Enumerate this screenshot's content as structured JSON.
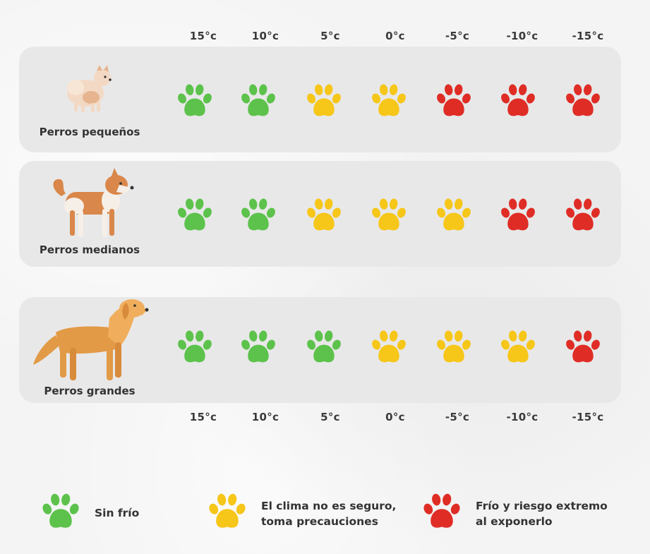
{
  "temperatures": [
    "15°c",
    "10°c",
    "5°c",
    "0°c",
    "-5°c",
    "-10°c",
    "-15°c"
  ],
  "colors": {
    "green": "#5cc24b",
    "yellow": "#f6c619",
    "red": "#df2d26"
  },
  "rows": [
    {
      "label": "Perros pequeños",
      "dog": "small-dog",
      "levels": [
        "green",
        "green",
        "yellow",
        "yellow",
        "red",
        "red",
        "red"
      ]
    },
    {
      "label": "Perros medianos",
      "dog": "medium-dog",
      "levels": [
        "green",
        "green",
        "yellow",
        "yellow",
        "yellow",
        "red",
        "red"
      ]
    },
    {
      "label": "Perros grandes",
      "dog": "large-dog",
      "levels": [
        "green",
        "green",
        "green",
        "yellow",
        "yellow",
        "yellow",
        "red"
      ]
    }
  ],
  "legend": [
    {
      "color": "green",
      "line1": "Sin frío",
      "line2": ""
    },
    {
      "color": "yellow",
      "line1": "El clima no es seguro,",
      "line2": "toma precauciones"
    },
    {
      "color": "red",
      "line1": "Frío y riesgo extremo",
      "line2": "al exponerlo"
    }
  ]
}
